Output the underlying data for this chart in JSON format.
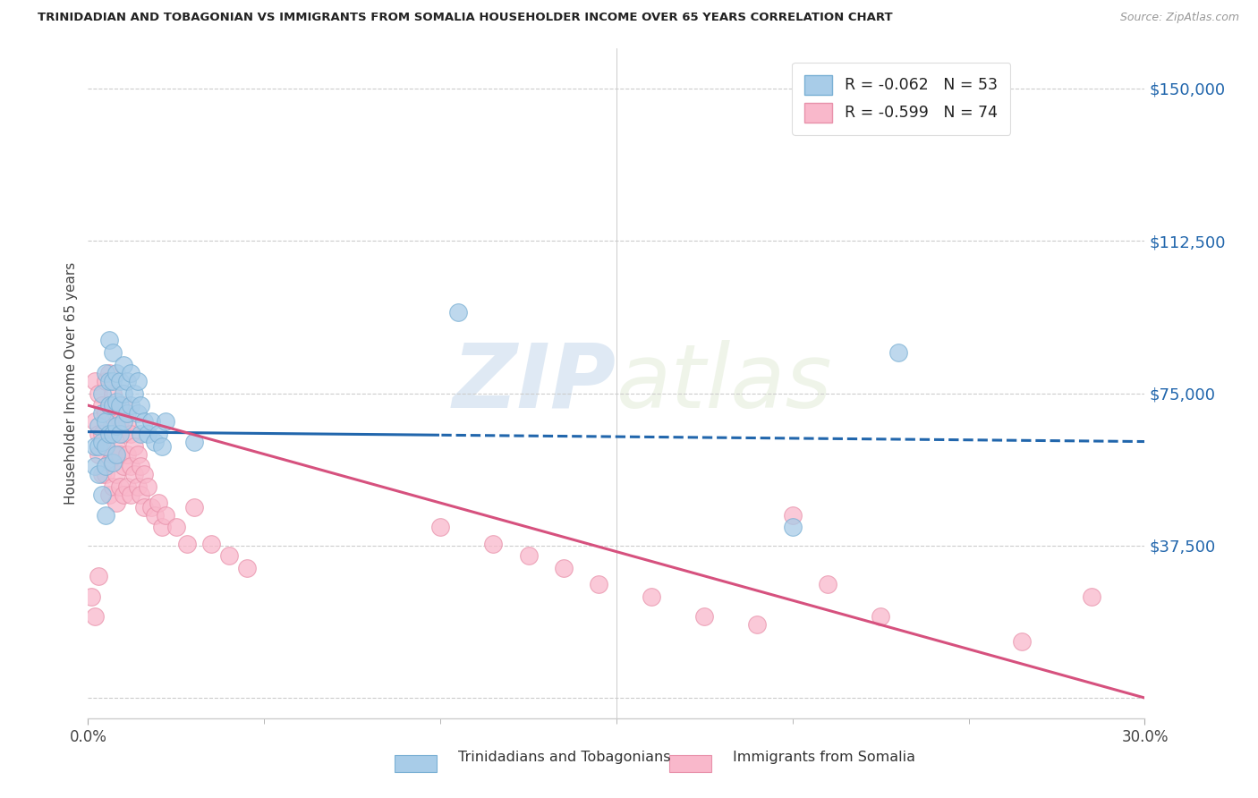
{
  "title": "TRINIDADIAN AND TOBAGONIAN VS IMMIGRANTS FROM SOMALIA HOUSEHOLDER INCOME OVER 65 YEARS CORRELATION CHART",
  "source": "Source: ZipAtlas.com",
  "ylabel": "Householder Income Over 65 years",
  "y_ticks": [
    0,
    37500,
    75000,
    112500,
    150000
  ],
  "y_tick_labels": [
    "",
    "$37,500",
    "$75,000",
    "$112,500",
    "$150,000"
  ],
  "x_min": 0.0,
  "x_max": 0.3,
  "y_min": -5000,
  "y_max": 160000,
  "blue_R": "-0.062",
  "blue_N": "53",
  "pink_R": "-0.599",
  "pink_N": "74",
  "legend_label_blue": "Trinidadians and Tobagonians",
  "legend_label_pink": "Immigrants from Somalia",
  "blue_color": "#a8cce8",
  "pink_color": "#f9b8cb",
  "blue_edge_color": "#7ab0d4",
  "pink_edge_color": "#e891aa",
  "blue_line_color": "#2166ac",
  "pink_line_color": "#d6517e",
  "watermark_zip": "ZIP",
  "watermark_atlas": "atlas",
  "blue_line_solid_end": 0.1,
  "blue_scatter_x": [
    0.002,
    0.002,
    0.003,
    0.003,
    0.003,
    0.004,
    0.004,
    0.004,
    0.004,
    0.005,
    0.005,
    0.005,
    0.005,
    0.005,
    0.006,
    0.006,
    0.006,
    0.006,
    0.007,
    0.007,
    0.007,
    0.007,
    0.007,
    0.008,
    0.008,
    0.008,
    0.008,
    0.009,
    0.009,
    0.009,
    0.01,
    0.01,
    0.01,
    0.011,
    0.011,
    0.012,
    0.012,
    0.013,
    0.014,
    0.014,
    0.015,
    0.015,
    0.016,
    0.017,
    0.018,
    0.019,
    0.02,
    0.021,
    0.022,
    0.03,
    0.105,
    0.2,
    0.23
  ],
  "blue_scatter_y": [
    62000,
    57000,
    67000,
    62000,
    55000,
    75000,
    70000,
    63000,
    50000,
    80000,
    68000,
    62000,
    57000,
    45000,
    88000,
    78000,
    72000,
    65000,
    85000,
    78000,
    72000,
    65000,
    58000,
    80000,
    73000,
    67000,
    60000,
    78000,
    72000,
    65000,
    82000,
    75000,
    68000,
    78000,
    70000,
    80000,
    72000,
    75000,
    78000,
    70000,
    72000,
    65000,
    68000,
    65000,
    68000,
    63000,
    65000,
    62000,
    68000,
    63000,
    95000,
    42000,
    85000
  ],
  "pink_scatter_x": [
    0.001,
    0.002,
    0.002,
    0.002,
    0.003,
    0.003,
    0.003,
    0.003,
    0.004,
    0.004,
    0.004,
    0.005,
    0.005,
    0.005,
    0.005,
    0.006,
    0.006,
    0.006,
    0.006,
    0.006,
    0.007,
    0.007,
    0.007,
    0.007,
    0.008,
    0.008,
    0.008,
    0.008,
    0.009,
    0.009,
    0.009,
    0.01,
    0.01,
    0.01,
    0.01,
    0.011,
    0.011,
    0.011,
    0.012,
    0.012,
    0.012,
    0.013,
    0.013,
    0.014,
    0.014,
    0.015,
    0.015,
    0.016,
    0.016,
    0.017,
    0.018,
    0.019,
    0.02,
    0.021,
    0.022,
    0.025,
    0.028,
    0.03,
    0.035,
    0.04,
    0.045,
    0.1,
    0.115,
    0.125,
    0.135,
    0.145,
    0.16,
    0.175,
    0.19,
    0.2,
    0.21,
    0.225,
    0.265,
    0.285
  ],
  "pink_scatter_y": [
    25000,
    78000,
    68000,
    20000,
    75000,
    65000,
    60000,
    30000,
    72000,
    65000,
    55000,
    78000,
    70000,
    62000,
    55000,
    80000,
    72000,
    65000,
    58000,
    50000,
    75000,
    68000,
    60000,
    52000,
    70000,
    62000,
    55000,
    48000,
    68000,
    60000,
    52000,
    72000,
    65000,
    57000,
    50000,
    68000,
    60000,
    52000,
    65000,
    57000,
    50000,
    62000,
    55000,
    60000,
    52000,
    57000,
    50000,
    55000,
    47000,
    52000,
    47000,
    45000,
    48000,
    42000,
    45000,
    42000,
    38000,
    47000,
    38000,
    35000,
    32000,
    42000,
    38000,
    35000,
    32000,
    28000,
    25000,
    20000,
    18000,
    45000,
    28000,
    20000,
    14000,
    25000
  ]
}
